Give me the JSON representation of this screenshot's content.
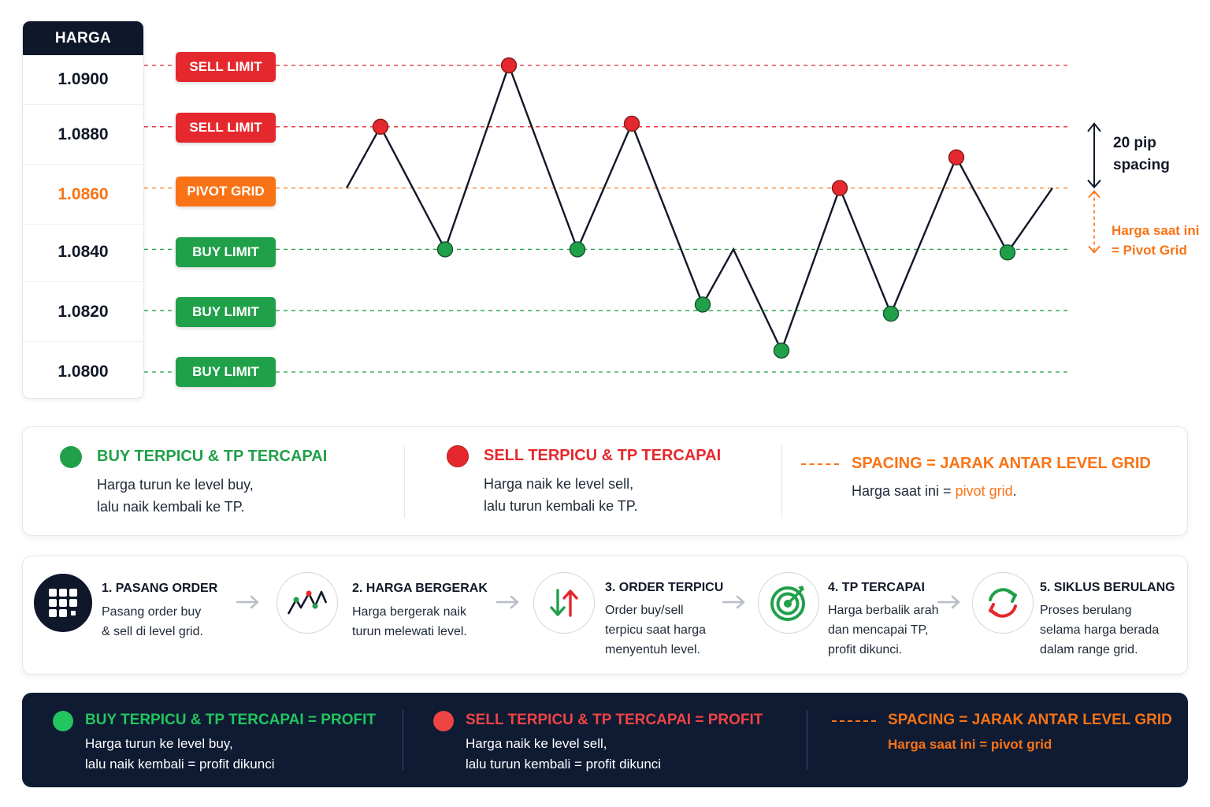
{
  "price_axis": {
    "header": "HARGA",
    "levels": [
      {
        "price": "1.0900",
        "label": "SELL LIMIT",
        "type": "sell"
      },
      {
        "price": "1.0880",
        "label": "SELL LIMIT",
        "type": "sell"
      },
      {
        "price": "1.0860",
        "label": "PIVOT GRID",
        "type": "pivot"
      },
      {
        "price": "1.0840",
        "label": "BUY LIMIT",
        "type": "buy"
      },
      {
        "price": "1.0820",
        "label": "BUY LIMIT",
        "type": "buy"
      },
      {
        "price": "1.0800",
        "label": "BUY LIMIT",
        "type": "buy"
      }
    ]
  },
  "chart_data": {
    "type": "line",
    "y_range": [
      1.08,
      1.09
    ],
    "path_start": 1.086,
    "path_end": 1.086,
    "points": [
      {
        "y": 1.088,
        "side": "sell"
      },
      {
        "y": 1.084,
        "side": "buy"
      },
      {
        "y": 1.09,
        "side": "sell"
      },
      {
        "y": 1.084,
        "side": "buy"
      },
      {
        "y": 1.0881,
        "side": "sell"
      },
      {
        "y": 1.0822,
        "side": "buy"
      },
      {
        "y": 1.084,
        "side": "none"
      },
      {
        "y": 1.0807,
        "side": "buy"
      },
      {
        "y": 1.086,
        "side": "sell"
      },
      {
        "y": 1.0819,
        "side": "buy"
      },
      {
        "y": 1.087,
        "side": "sell"
      },
      {
        "y": 1.0839,
        "side": "buy"
      }
    ]
  },
  "annotations": {
    "spacing_line1": "20 pip",
    "spacing_line2": "spacing",
    "current_line1": "Harga saat ini",
    "current_line2": "= Pivot Grid"
  },
  "legend": {
    "buy_title": "BUY TERPICU & TP TERCAPAI",
    "buy_desc1": "Harga turun ke level buy,",
    "buy_desc2": "lalu naik kembali ke TP.",
    "sell_title": "SELL TERPICU & TP TERCAPAI",
    "sell_desc1": "Harga naik ke level sell,",
    "sell_desc2": "lalu turun kembali ke TP.",
    "spacing_title": "SPACING = JARAK ANTAR LEVEL GRID",
    "spacing_desc_prefix": "Harga saat ini = ",
    "spacing_desc_highlight": "pivot grid",
    "spacing_desc_suffix": "."
  },
  "steps": [
    {
      "title": "1. PASANG ORDER",
      "lines": [
        "Pasang order buy",
        "& sell di level grid."
      ],
      "icon": "grid-icon"
    },
    {
      "title": "2. HARGA BERGERAK",
      "lines": [
        "Harga bergerak naik",
        "turun melewati level."
      ],
      "icon": "zigzag-chart-icon"
    },
    {
      "title": "3. ORDER TERPICU",
      "lines": [
        "Order buy/sell",
        "terpicu saat harga",
        "menyentuh level."
      ],
      "icon": "up-down-arrows-icon"
    },
    {
      "title": "4. TP TERCAPAI",
      "lines": [
        "Harga berbalik arah",
        "dan mencapai TP,",
        "profit dikunci."
      ],
      "icon": "target-icon"
    },
    {
      "title": "5. SIKLUS BERULANG",
      "lines": [
        "Proses berulang",
        "selama harga berada",
        "dalam range grid."
      ],
      "icon": "cycle-icon"
    }
  ],
  "summary": {
    "buy_title": "BUY TERPICU & TP TERCAPAI = PROFIT",
    "buy_desc1": "Harga turun ke level buy,",
    "buy_desc2": "lalu naik kembali = profit dikunci",
    "sell_title": "SELL TERPICU & TP TERCAPAI = PROFIT",
    "sell_desc1": "Harga naik ke level sell,",
    "sell_desc2": "lalu turun kembali = profit dikunci",
    "spacing_title": "SPACING = JARAK ANTAR LEVEL GRID",
    "spacing_desc": "Harga saat ini = pivot grid"
  },
  "colors": {
    "sell": "#e5282d",
    "buy": "#21a04a",
    "pivot": "#f97316",
    "dark": "#0f172a",
    "summary_buy": "#22c55e",
    "summary_sell": "#ef4444"
  }
}
